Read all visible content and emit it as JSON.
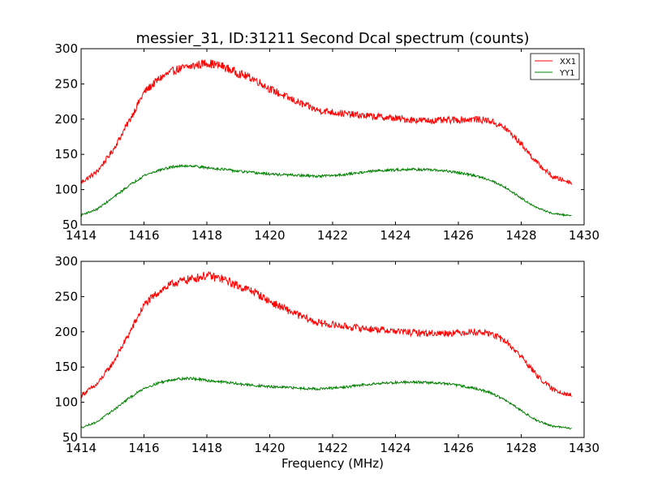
{
  "figure": {
    "title": "messier_31, ID:31211 Second Dcal spectrum (counts)",
    "xlabel": "Frequency (MHz)"
  },
  "colors": {
    "XX1": "#ff0000",
    "YY1": "#008000",
    "frame": "#000000"
  },
  "chart_data": [
    {
      "type": "line",
      "title": "messier_31, ID:31211 Second Dcal spectrum (counts)",
      "xlabel": "",
      "ylabel": "",
      "xlim": [
        1414,
        1430
      ],
      "ylim": [
        50,
        300
      ],
      "xticks": [
        1414,
        1416,
        1418,
        1420,
        1422,
        1424,
        1426,
        1428,
        1430
      ],
      "yticks": [
        50,
        100,
        150,
        200,
        250,
        300
      ],
      "grid": false,
      "legend": {
        "placement": "top-right",
        "entries": [
          "XX1",
          "YY1"
        ]
      },
      "series": [
        {
          "name": "XX1",
          "x": [
            1414.0,
            1414.5,
            1415.0,
            1415.5,
            1416.0,
            1416.5,
            1417.0,
            1417.5,
            1418.0,
            1418.5,
            1419.0,
            1419.5,
            1420.0,
            1420.5,
            1421.0,
            1421.5,
            1422.0,
            1422.5,
            1423.0,
            1423.5,
            1424.0,
            1424.5,
            1425.0,
            1425.5,
            1426.0,
            1426.5,
            1427.0,
            1427.5,
            1428.0,
            1428.5,
            1429.0,
            1429.6
          ],
          "values": [
            110,
            125,
            155,
            195,
            238,
            258,
            270,
            275,
            280,
            275,
            265,
            257,
            243,
            232,
            222,
            213,
            210,
            207,
            205,
            203,
            201,
            199,
            198,
            198,
            199,
            200,
            198,
            187,
            165,
            138,
            118,
            110
          ]
        },
        {
          "name": "YY1",
          "x": [
            1414.0,
            1414.5,
            1415.0,
            1415.5,
            1416.0,
            1416.5,
            1417.0,
            1417.5,
            1418.0,
            1418.5,
            1419.0,
            1419.5,
            1420.0,
            1420.5,
            1421.0,
            1421.5,
            1422.0,
            1422.5,
            1423.0,
            1423.5,
            1424.0,
            1424.5,
            1425.0,
            1425.5,
            1426.0,
            1426.5,
            1427.0,
            1427.5,
            1428.0,
            1428.5,
            1429.0,
            1429.6
          ],
          "values": [
            64,
            72,
            88,
            105,
            120,
            128,
            133,
            134,
            131,
            129,
            126,
            124,
            122,
            121,
            120,
            119,
            120,
            122,
            125,
            127,
            128,
            129,
            128,
            127,
            124,
            120,
            114,
            103,
            88,
            74,
            66,
            63
          ]
        }
      ]
    },
    {
      "type": "line",
      "title": "",
      "xlabel": "Frequency (MHz)",
      "ylabel": "",
      "xlim": [
        1414,
        1430
      ],
      "ylim": [
        50,
        300
      ],
      "xticks": [
        1414,
        1416,
        1418,
        1420,
        1422,
        1424,
        1426,
        1428,
        1430
      ],
      "yticks": [
        50,
        100,
        150,
        200,
        250,
        300
      ],
      "grid": false,
      "legend": null,
      "series": [
        {
          "name": "XX1",
          "x": [
            1414.0,
            1414.5,
            1415.0,
            1415.5,
            1416.0,
            1416.5,
            1417.0,
            1417.5,
            1418.0,
            1418.5,
            1419.0,
            1419.5,
            1420.0,
            1420.5,
            1421.0,
            1421.5,
            1422.0,
            1422.5,
            1423.0,
            1423.5,
            1424.0,
            1424.5,
            1425.0,
            1425.5,
            1426.0,
            1426.5,
            1427.0,
            1427.5,
            1428.0,
            1428.5,
            1429.0,
            1429.6
          ],
          "values": [
            110,
            125,
            155,
            195,
            238,
            258,
            270,
            275,
            280,
            275,
            265,
            257,
            243,
            232,
            222,
            213,
            210,
            207,
            205,
            203,
            201,
            199,
            198,
            198,
            199,
            200,
            198,
            187,
            165,
            138,
            118,
            110
          ]
        },
        {
          "name": "YY1",
          "x": [
            1414.0,
            1414.5,
            1415.0,
            1415.5,
            1416.0,
            1416.5,
            1417.0,
            1417.5,
            1418.0,
            1418.5,
            1419.0,
            1419.5,
            1420.0,
            1420.5,
            1421.0,
            1421.5,
            1422.0,
            1422.5,
            1423.0,
            1423.5,
            1424.0,
            1424.5,
            1425.0,
            1425.5,
            1426.0,
            1426.5,
            1427.0,
            1427.5,
            1428.0,
            1428.5,
            1429.0,
            1429.6
          ],
          "values": [
            64,
            72,
            88,
            105,
            120,
            128,
            133,
            134,
            131,
            129,
            126,
            124,
            122,
            121,
            120,
            119,
            120,
            122,
            125,
            127,
            128,
            129,
            128,
            127,
            124,
            120,
            114,
            103,
            88,
            74,
            66,
            63
          ]
        }
      ]
    }
  ]
}
